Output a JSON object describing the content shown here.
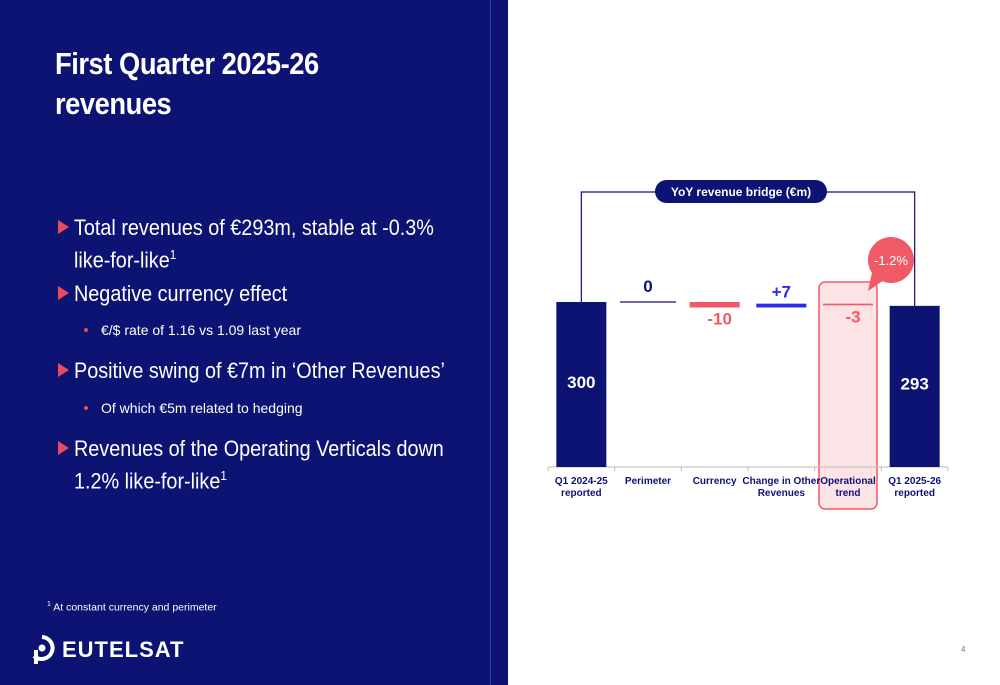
{
  "title_line1": "First Quarter 2025-26",
  "title_line2": "revenues",
  "bullets": [
    {
      "text": "Total revenues of €293m, stable at -0.3% like-for-like",
      "sup": "1"
    },
    {
      "text": "Negative currency effect",
      "sup": ""
    },
    {
      "text": "Positive swing of €7m in ‘Other Revenues’",
      "sup": ""
    },
    {
      "text": "Revenues of the Operating Verticals down 1.2% like-for-like",
      "sup": "1"
    }
  ],
  "subbullets": [
    "€/$ rate of 1.16 vs 1.09 last year",
    "Of which €5m related to hedging"
  ],
  "footnote": {
    "sup": "1",
    "text": "At constant currency and perimeter"
  },
  "logo_text": "EUTELSAT",
  "page_number": "4",
  "colors": {
    "navy": "#0c1373",
    "red": "#f05a67",
    "blue": "#2b2bf0",
    "pink": "#fde3e5"
  },
  "chart_data": {
    "type": "waterfall",
    "title": "YoY revenue bridge (€m)",
    "categories": [
      [
        "Q1 2024-25",
        "reported"
      ],
      [
        "Perimeter"
      ],
      [
        "Currency"
      ],
      [
        "Change in Other",
        "Revenues"
      ],
      [
        "Operational",
        "trend"
      ],
      [
        "Q1 2025-26",
        "reported"
      ]
    ],
    "values": [
      300,
      0,
      -10,
      7,
      -3,
      293
    ],
    "labels": [
      "300",
      "0",
      "-10",
      "+7",
      "-3",
      "293"
    ],
    "kinds": [
      "total",
      "delta",
      "delta",
      "delta",
      "delta",
      "total"
    ],
    "highlight_index": 4,
    "callout": "-1.2%"
  }
}
